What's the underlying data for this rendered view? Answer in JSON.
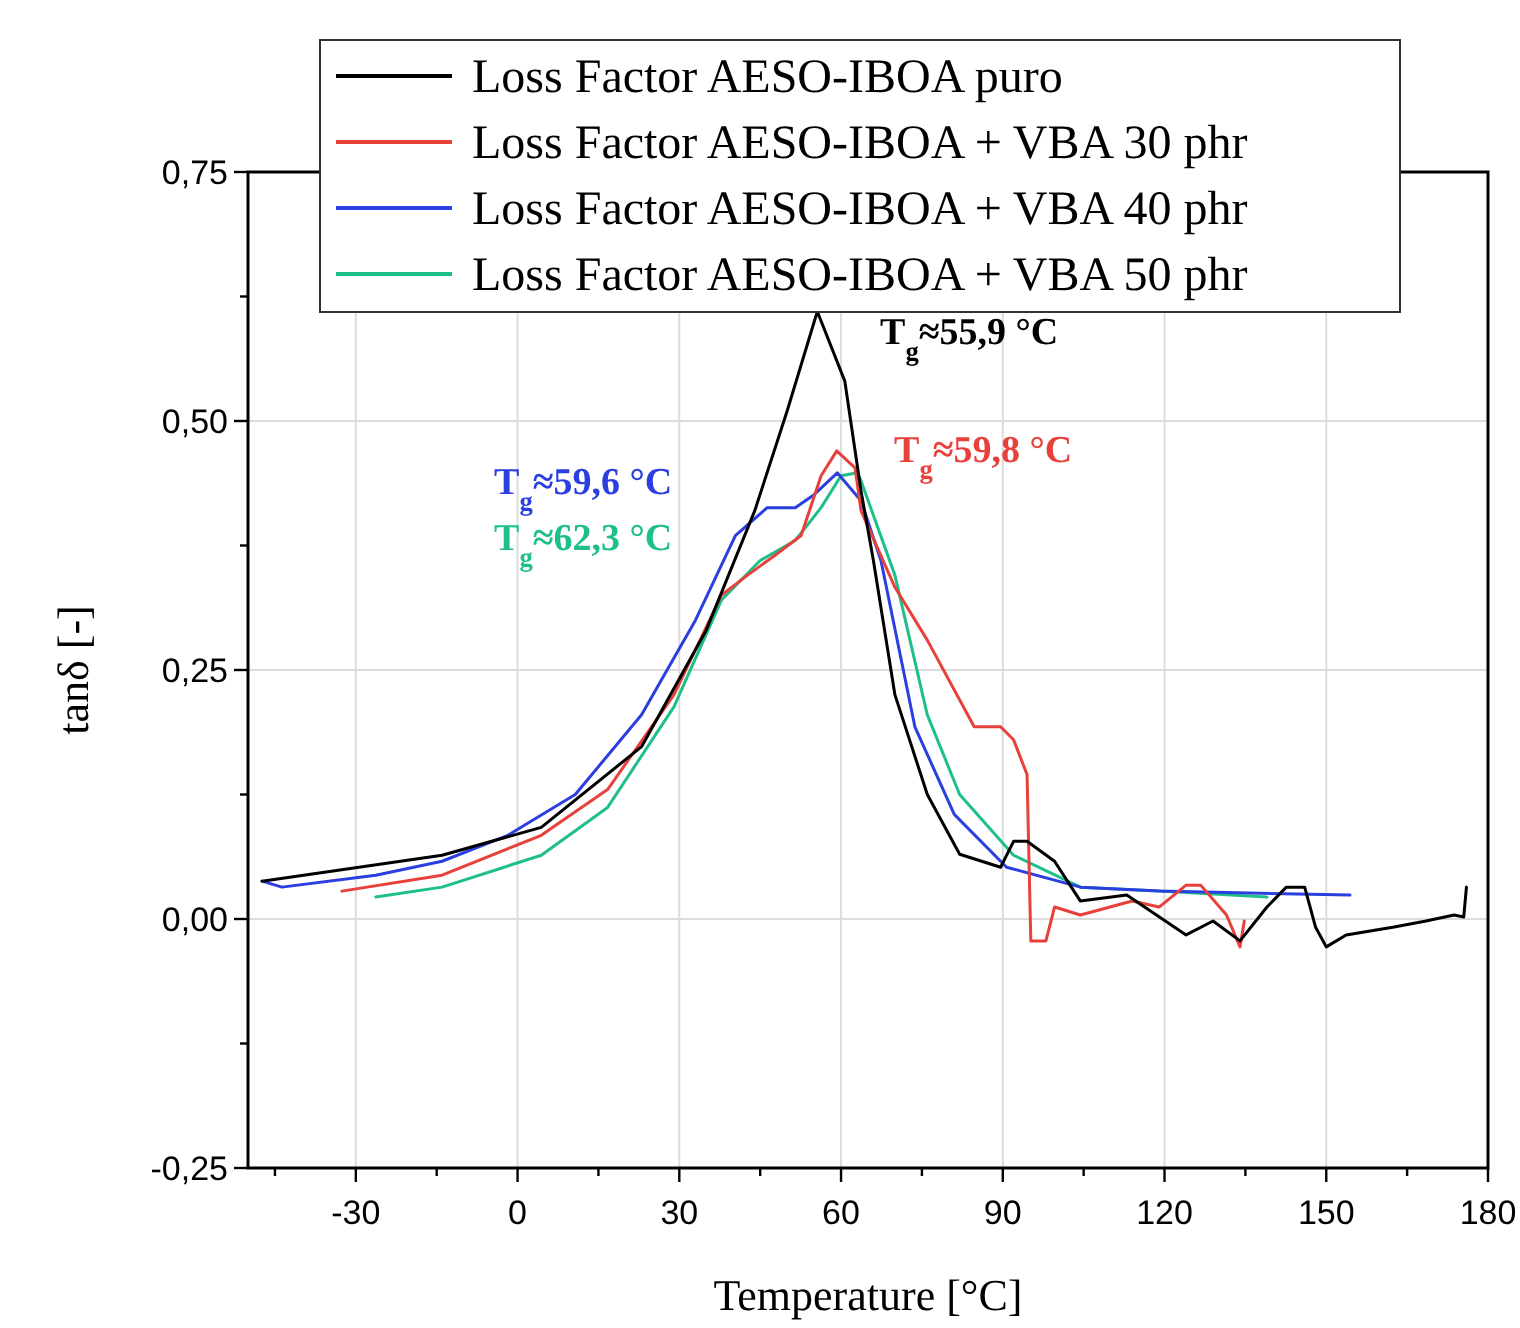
{
  "chart_data": {
    "type": "line",
    "xlabel": "Temperature [°C]",
    "ylabel": "tanδ [-]",
    "xlim": [
      -50,
      180
    ],
    "ylim": [
      -0.25,
      0.75
    ],
    "xticks": [
      {
        "value": -45,
        "label": null
      },
      -30,
      {
        "value": -15,
        "label": null
      },
      0,
      {
        "value": 15,
        "label": null
      },
      30,
      {
        "value": 45,
        "label": null
      },
      60,
      {
        "value": 75,
        "label": null
      },
      90,
      {
        "value": 105,
        "label": null
      },
      120,
      {
        "value": 135,
        "label": null
      },
      150,
      {
        "value": 165,
        "label": null
      },
      180
    ],
    "yticks": [
      {
        "value": -0.25,
        "label": "-0,25"
      },
      {
        "value": -0.125,
        "label": null
      },
      {
        "value": 0,
        "label": "0,00"
      },
      {
        "value": 0.125,
        "label": null
      },
      {
        "value": 0.25,
        "label": "0,25"
      },
      {
        "value": 0.375,
        "label": null
      },
      {
        "value": 0.5,
        "label": "0,50"
      },
      {
        "value": 0.625,
        "label": null
      },
      {
        "value": 0.75,
        "label": "0,75"
      }
    ],
    "grid": true,
    "legend": "top",
    "line_style": "solid",
    "marker": "none",
    "series": [
      {
        "name": "Loss Factor AESO-IBOA puro",
        "color": "#000000",
        "x": [
          -47.4,
          -14,
          4.4,
          23,
          35,
          44,
          50,
          55.6,
          60.7,
          63.7,
          66,
          70,
          76,
          82,
          89.6,
          92,
          94.5,
          99.6,
          104.4,
          113,
          124,
          129,
          134,
          139,
          142.6,
          146,
          148,
          150,
          153.7,
          162.6,
          168.5,
          173.7,
          175.5,
          176
        ],
        "values": [
          0.038,
          0.064,
          0.092,
          0.173,
          0.29,
          0.41,
          0.51,
          0.61,
          0.54,
          0.43,
          0.36,
          0.225,
          0.125,
          0.065,
          0.052,
          0.078,
          0.078,
          0.058,
          0.018,
          0.024,
          -0.016,
          -0.002,
          -0.022,
          0.012,
          0.032,
          0.032,
          -0.008,
          -0.028,
          -0.016,
          -0.008,
          -0.002,
          0.004,
          0.002,
          0.032
        ]
      },
      {
        "name": "Loss Factor AESO-IBOA + VBA 30 phr",
        "color": "#e8413c",
        "x": [
          -32.6,
          -14,
          4.4,
          16.7,
          29,
          37.8,
          42.6,
          47.7,
          52.6,
          56.3,
          59.2,
          62.6,
          63.7,
          70,
          76,
          84.7,
          89.6,
          92,
          94.5,
          95.2,
          98,
          99.6,
          104.4,
          114,
          119,
          124,
          126.7,
          131.5,
          134,
          134.8
        ],
        "values": [
          0.028,
          0.044,
          0.084,
          0.13,
          0.225,
          0.325,
          0.345,
          0.365,
          0.385,
          0.445,
          0.47,
          0.453,
          0.41,
          0.333,
          0.28,
          0.193,
          0.193,
          0.18,
          0.145,
          -0.022,
          -0.022,
          0.012,
          0.004,
          0.018,
          0.012,
          0.034,
          0.034,
          0.004,
          -0.028,
          -0.002
        ]
      },
      {
        "name": "Loss Factor AESO-IBOA + VBA 40 phr",
        "color": "#2b3fe0",
        "x": [
          -47.4,
          -43.7,
          -26.3,
          -14,
          -1.8,
          10.7,
          23,
          33,
          40.4,
          46.3,
          51.5,
          55,
          59.3,
          63.7,
          67.4,
          73.7,
          81,
          90.7,
          104.4,
          119,
          154.4
        ],
        "values": [
          0.038,
          0.032,
          0.044,
          0.058,
          0.084,
          0.125,
          0.205,
          0.3,
          0.385,
          0.413,
          0.413,
          0.426,
          0.448,
          0.42,
          0.36,
          0.193,
          0.105,
          0.052,
          0.032,
          0.028,
          0.024
        ]
      },
      {
        "name": "Loss Factor AESO-IBOA + VBA 50 phr",
        "color": "#1fbf8a",
        "x": [
          -26.3,
          -14,
          4.4,
          16.7,
          29,
          37.8,
          45,
          51.5,
          56.3,
          60,
          63,
          63.7,
          70,
          76,
          82,
          92,
          104.4,
          119,
          139
        ],
        "values": [
          0.022,
          0.032,
          0.064,
          0.112,
          0.213,
          0.32,
          0.36,
          0.38,
          0.413,
          0.445,
          0.448,
          0.44,
          0.345,
          0.205,
          0.125,
          0.064,
          0.032,
          0.028,
          0.022
        ]
      }
    ],
    "annotations": [
      "T$_{g}$≈55,9 °C",
      "T$_{g}$≈59,8 °C",
      "T$_{g}$≈59,6 °C",
      "T$_{g}$≈62,3 °C"
    ]
  }
}
